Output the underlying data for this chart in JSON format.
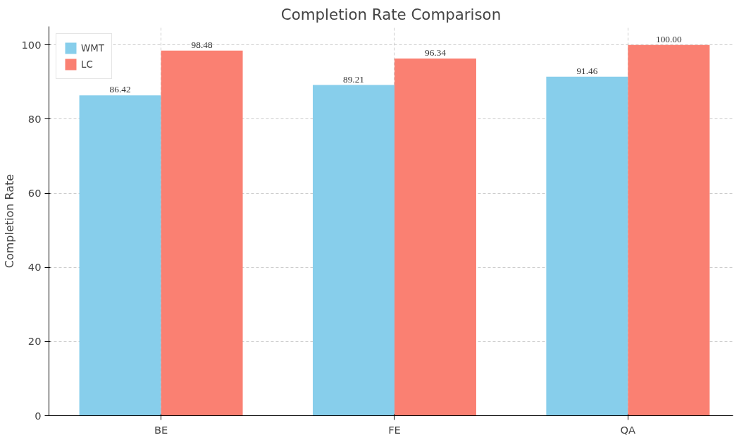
{
  "chart_data": {
    "type": "bar",
    "title": "Completion Rate Comparison",
    "ylabel": "Completion Rate",
    "categories": [
      "BE",
      "FE",
      "QA"
    ],
    "series": [
      {
        "name": "WMT",
        "color": "#87ceeb",
        "values": [
          86.42,
          89.21,
          91.46
        ],
        "value_labels": [
          "86.42",
          "89.21",
          "91.46"
        ]
      },
      {
        "name": "LC",
        "color": "#fa8072",
        "values": [
          98.48,
          96.34,
          100.0
        ],
        "value_labels": [
          "98.48",
          "96.34",
          "100.00"
        ]
      }
    ],
    "ylim": [
      0,
      105
    ],
    "yticks": [
      0,
      20,
      40,
      60,
      80,
      100
    ],
    "grid": true,
    "legend": "top left"
  }
}
